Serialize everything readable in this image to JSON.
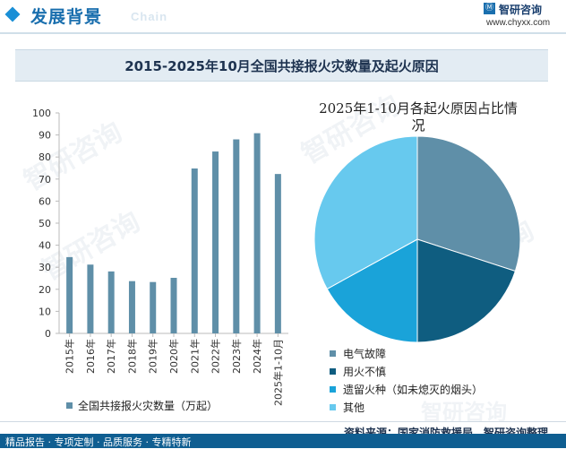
{
  "header": {
    "title": "发展背景",
    "subtitle": "Chain",
    "logo_mark": "Ⓜ",
    "logo_name": "智研咨询",
    "logo_url": "www.chyxx.com"
  },
  "watermark": "智研咨询",
  "colors": {
    "bar": "#5f8fa8",
    "pie": [
      "#5f8fa8",
      "#0f5d80",
      "#1aa3d9",
      "#67c9ee"
    ],
    "header_accent": "#1a8fd6",
    "footer_bar": "#0f5e91"
  },
  "chart_data": [
    {
      "type": "bar",
      "title": "2015-2025年10月全国共接报火灾数量及起火原因",
      "categories": [
        "2015年",
        "2016年",
        "2017年",
        "2018年",
        "2019年",
        "2020年",
        "2021年",
        "2022年",
        "2023年",
        "2024年",
        "2025年1-10月"
      ],
      "series": [
        {
          "name": "全国共接报火灾数量（万起）",
          "values": [
            34.6,
            31.2,
            28.1,
            23.7,
            23.3,
            25.2,
            74.8,
            82.5,
            88.0,
            90.8,
            72.3
          ]
        }
      ],
      "ylim": [
        0,
        100
      ],
      "yticks": [
        0,
        10,
        20,
        30,
        40,
        50,
        60,
        70,
        80,
        90,
        100
      ],
      "grid": false,
      "legend": "bottom"
    },
    {
      "type": "pie",
      "title": "2025年1-10月各起火原因占比情况",
      "labels": [
        "电气故障",
        "用火不慎",
        "遗留火种（如未熄灭的烟头）",
        "其他"
      ],
      "values": [
        30,
        20,
        17,
        33
      ],
      "legend": "bottom-left"
    }
  ],
  "footer": {
    "source": "资料来源：国家消防救援局，智研咨询整理",
    "services": "精品报告 · 专项定制 · 品质服务 · 专精特新"
  }
}
